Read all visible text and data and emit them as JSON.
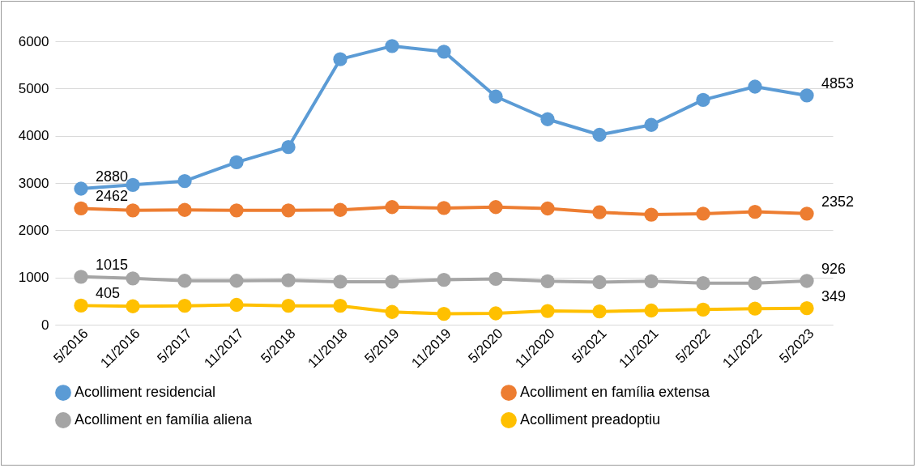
{
  "chart_data": {
    "type": "line",
    "categories": [
      "5/2016",
      "11/2016",
      "5/2017",
      "11/2017",
      "5/2018",
      "11/2018",
      "5/2019",
      "11/2019",
      "5/2020",
      "11/2020",
      "5/2021",
      "11/2021",
      "5/2022",
      "11/2022",
      "5/2023"
    ],
    "series": [
      {
        "name": "Acolliment residencial",
        "color": "#5b9bd5",
        "values": [
          2880,
          2960,
          3040,
          3440,
          3760,
          5620,
          5900,
          5780,
          4830,
          4350,
          4020,
          4230,
          4760,
          5040,
          4853
        ],
        "value_labels": [
          "2880",
          null,
          null,
          null,
          null,
          null,
          null,
          null,
          null,
          null,
          null,
          null,
          null,
          null,
          "4853"
        ]
      },
      {
        "name": "Acolliment en família extensa",
        "color": "#ed7d31",
        "values": [
          2462,
          2420,
          2430,
          2420,
          2420,
          2430,
          2490,
          2470,
          2490,
          2460,
          2380,
          2330,
          2350,
          2390,
          2352
        ],
        "value_labels": [
          "2462",
          null,
          null,
          null,
          null,
          null,
          null,
          null,
          null,
          null,
          null,
          null,
          null,
          null,
          "2352"
        ]
      },
      {
        "name": "Acolliment en família aliena",
        "color": "#a5a5a5",
        "values": [
          1015,
          980,
          930,
          930,
          940,
          910,
          910,
          950,
          970,
          920,
          900,
          920,
          880,
          880,
          926
        ],
        "value_labels": [
          "1015",
          null,
          null,
          null,
          null,
          null,
          null,
          null,
          null,
          null,
          null,
          null,
          null,
          null,
          "926"
        ]
      },
      {
        "name": "Acolliment preadoptiu",
        "color": "#ffc000",
        "values": [
          405,
          390,
          400,
          420,
          400,
          400,
          270,
          230,
          240,
          290,
          280,
          300,
          320,
          340,
          349
        ],
        "value_labels": [
          "405",
          null,
          null,
          null,
          null,
          null,
          null,
          null,
          null,
          null,
          null,
          null,
          null,
          null,
          "349"
        ]
      }
    ],
    "ylim": [
      0,
      6000
    ],
    "yticks": [
      0,
      1000,
      2000,
      3000,
      4000,
      5000,
      6000
    ],
    "grid": "y",
    "legend": "bottom",
    "marker": "circle",
    "line_style": "solid"
  }
}
